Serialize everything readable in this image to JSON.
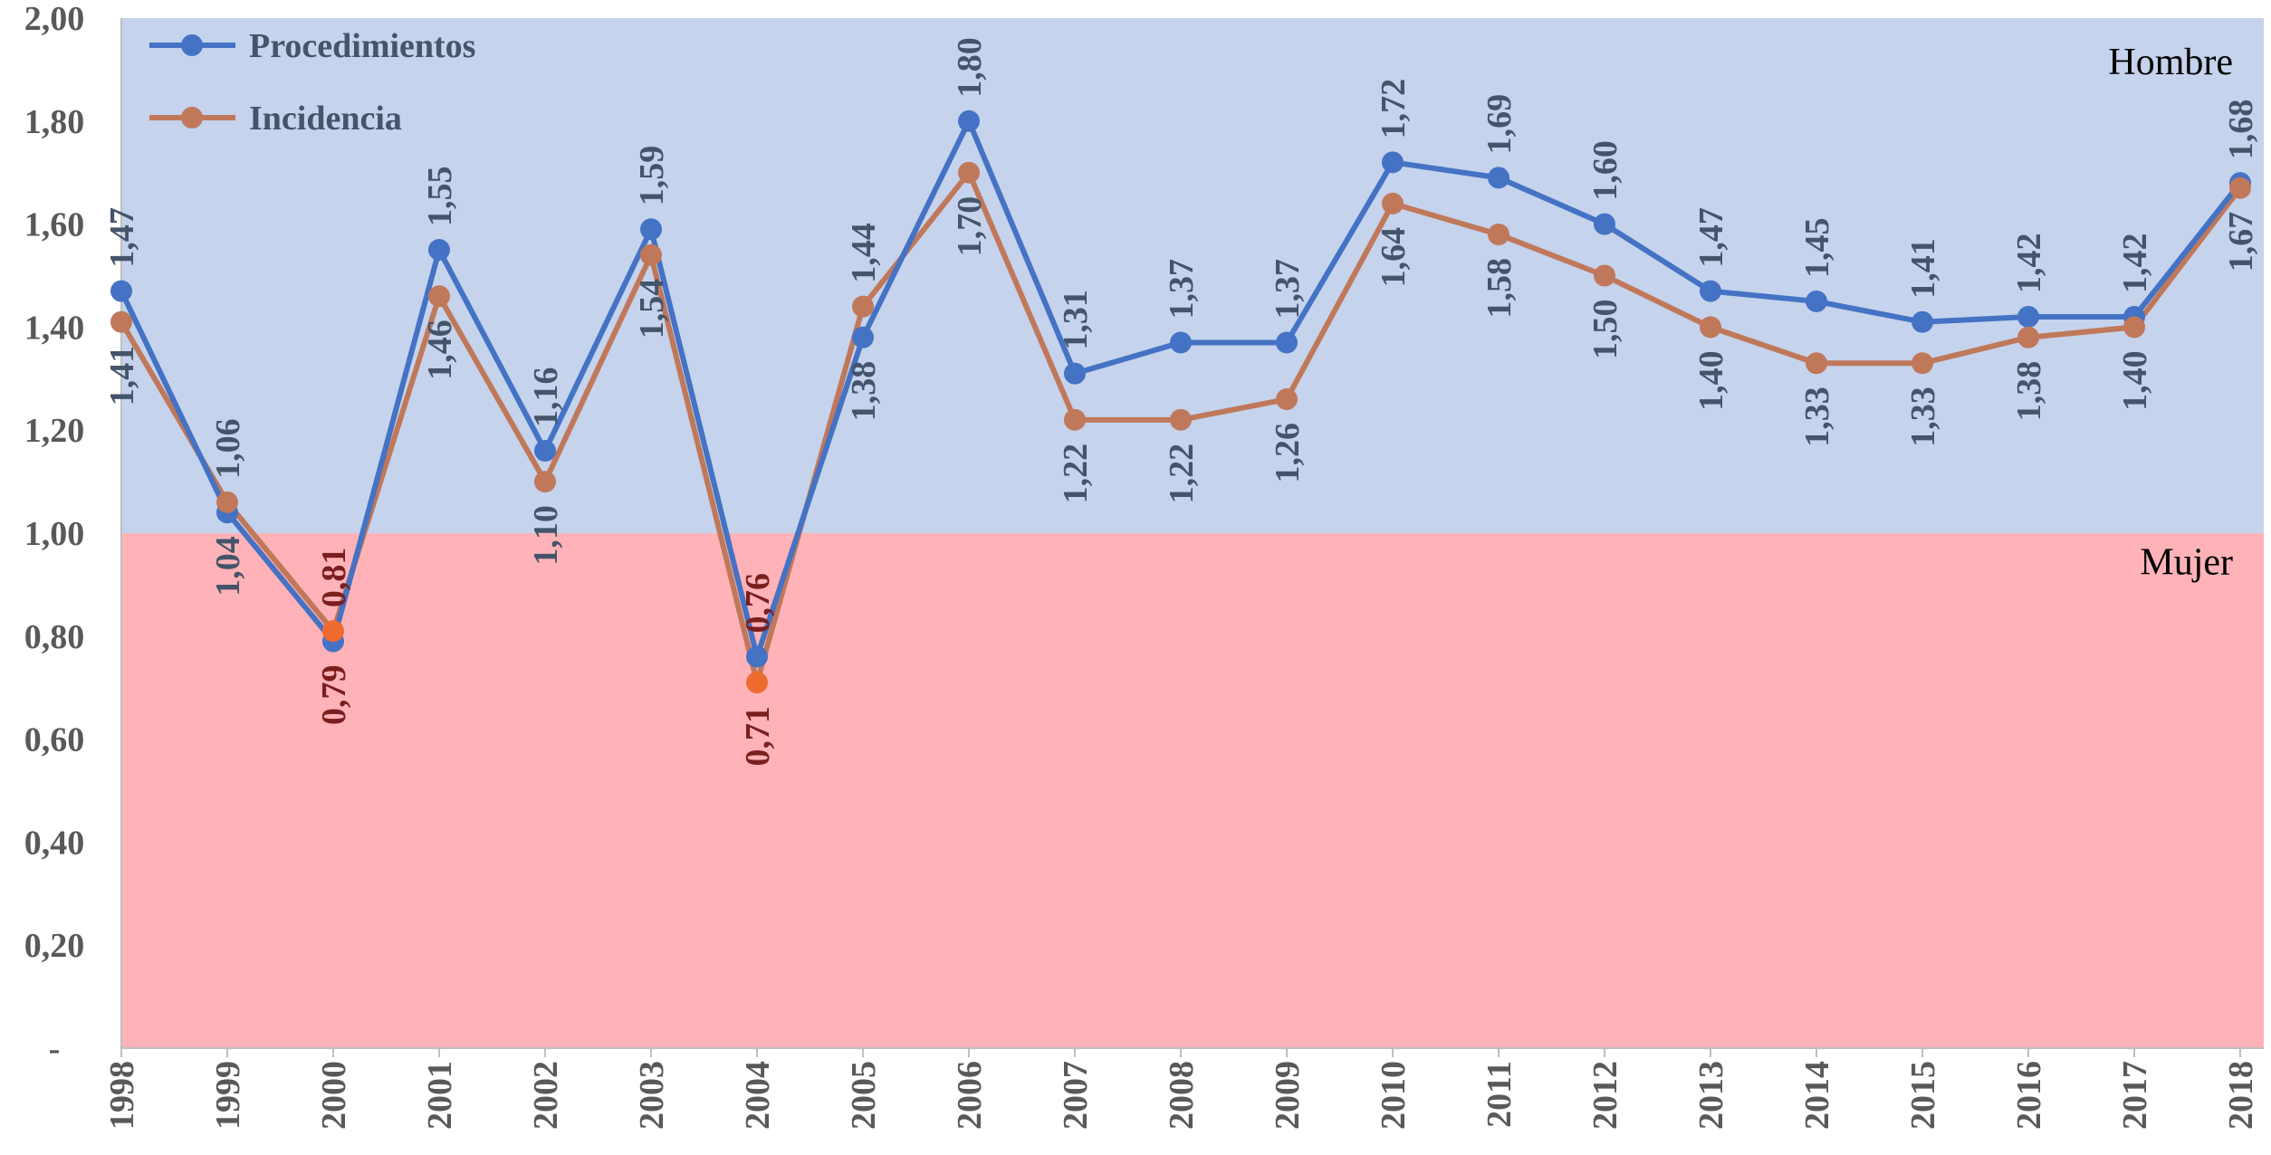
{
  "chart_data": {
    "type": "line",
    "categories": [
      "1998",
      "1999",
      "2000",
      "2001",
      "2002",
      "2003",
      "2004",
      "2005",
      "2006",
      "2007",
      "2008",
      "2009",
      "2010",
      "2011",
      "2012",
      "2013",
      "2014",
      "2015",
      "2016",
      "2017",
      "2018"
    ],
    "series": [
      {
        "name": "Procedimientos",
        "color": "#4472C4",
        "values": [
          1.47,
          1.04,
          0.79,
          1.55,
          1.16,
          1.59,
          0.76,
          1.38,
          1.8,
          1.31,
          1.37,
          1.37,
          1.72,
          1.69,
          1.6,
          1.47,
          1.45,
          1.41,
          1.42,
          1.42,
          1.68
        ],
        "labels": [
          "1,47",
          "1,04",
          "0,79",
          "1,55",
          "1,16",
          "1,59",
          "0,76",
          "1,38",
          "1,80",
          "1,31",
          "1,37",
          "1,37",
          "1,72",
          "1,69",
          "1,60",
          "1,47",
          "1,45",
          "1,41",
          "1,42",
          "1,42",
          "1,68"
        ]
      },
      {
        "name": "Incidencia",
        "color": "#C0785A",
        "values": [
          1.41,
          1.06,
          0.81,
          1.46,
          1.1,
          1.54,
          0.71,
          1.44,
          1.7,
          1.22,
          1.22,
          1.26,
          1.64,
          1.58,
          1.5,
          1.4,
          1.33,
          1.33,
          1.38,
          1.4,
          1.67
        ],
        "labels": [
          "1,41",
          "1,06",
          "0,81",
          "1,46",
          "1,10",
          "1,54",
          "0,71",
          "1,44",
          "1,70",
          "1,22",
          "1,22",
          "1,26",
          "1,64",
          "1,58",
          "1,50",
          "1,40",
          "1,33",
          "1,33",
          "1,38",
          "1,40",
          "1,67"
        ]
      }
    ],
    "ylim": [
      0,
      2.0
    ],
    "y_ticks": [
      {
        "value": 2.0,
        "label": "2,00"
      },
      {
        "value": 1.8,
        "label": "1,80"
      },
      {
        "value": 1.6,
        "label": "1,60"
      },
      {
        "value": 1.4,
        "label": "1,40"
      },
      {
        "value": 1.2,
        "label": "1,20"
      },
      {
        "value": 1.0,
        "label": "1,00"
      },
      {
        "value": 0.8,
        "label": "0,80"
      },
      {
        "value": 0.6,
        "label": "0,60"
      },
      {
        "value": 0.4,
        "label": "0,40"
      },
      {
        "value": 0.2,
        "label": "0,20"
      },
      {
        "value": 0.0,
        "label": "-"
      }
    ],
    "zones": [
      {
        "label": "Hombre",
        "from": 1.0,
        "to": 2.0,
        "color": "#C5D3EC"
      },
      {
        "label": "Mujer",
        "from": 0.0,
        "to": 1.0,
        "color": "#FFB3B8"
      }
    ],
    "highlight_color": "#ED6B2F",
    "legend_position": "top-left",
    "grid": false
  }
}
